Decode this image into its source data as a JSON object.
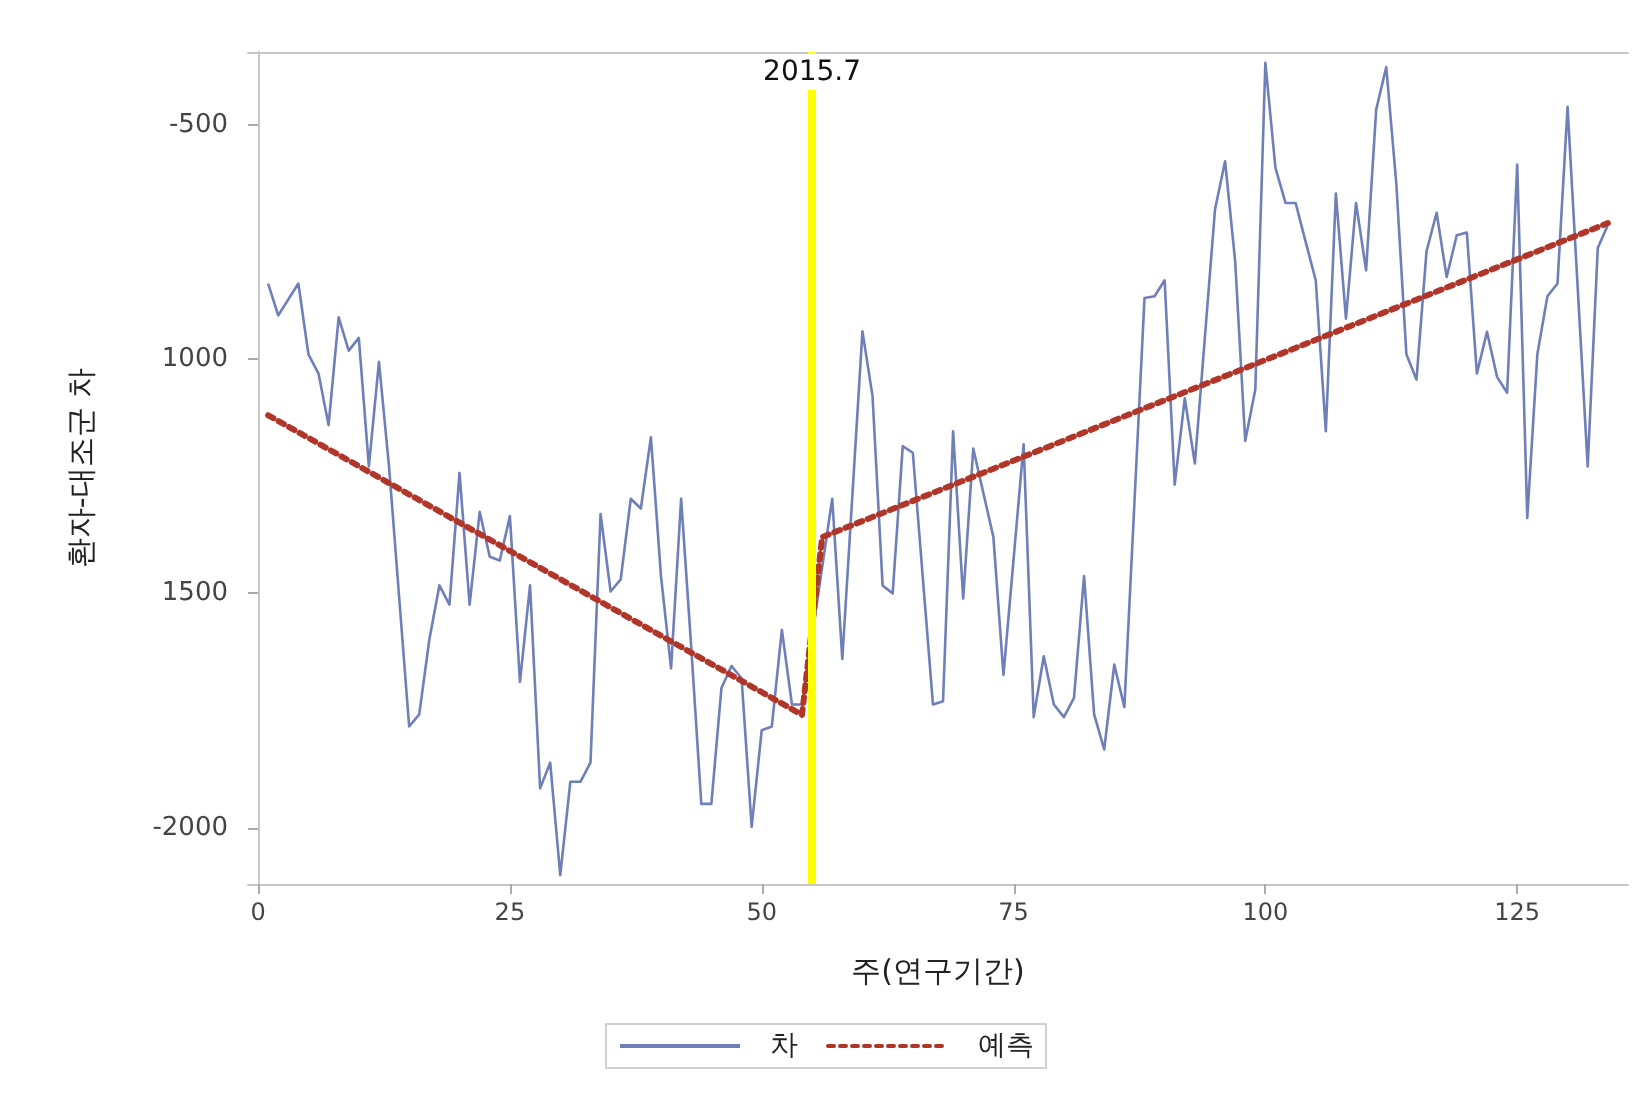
{
  "chart_data": {
    "type": "line",
    "xlabel": "주(연구기간)",
    "ylabel": "환자-대조군 차",
    "xlim": [
      -1,
      136
    ],
    "xticks": [
      0,
      25,
      50,
      75,
      100,
      125
    ],
    "ylim": [
      -2120,
      -345
    ],
    "yticks": [
      -500,
      {
        "value": -1000,
        "label": "1000"
      },
      {
        "value": -1500,
        "label": "1500"
      },
      -2000
    ],
    "series": [
      {
        "name": "차",
        "color": "#6f7fb8",
        "line_style": "solid",
        "x": [
          1,
          2,
          4,
          5,
          6,
          7,
          8,
          9,
          10,
          11,
          12,
          13,
          15,
          16,
          17,
          18,
          19,
          20,
          21,
          22,
          23,
          24,
          25,
          26,
          27,
          28,
          29,
          30,
          31,
          32,
          33,
          34,
          35,
          36,
          37,
          38,
          39,
          40,
          41,
          42,
          43,
          44,
          45,
          46,
          47,
          48,
          49,
          50,
          51,
          52,
          53,
          54,
          57,
          58,
          60,
          61,
          62,
          63,
          64,
          65,
          67,
          68,
          69,
          70,
          71,
          73,
          74,
          76,
          77,
          78,
          79,
          80,
          81,
          82,
          83,
          84,
          85,
          86,
          88,
          89,
          90,
          91,
          92,
          93,
          95,
          96,
          97,
          98,
          99,
          100,
          101,
          102,
          103,
          104,
          105,
          106,
          107,
          108,
          109,
          110,
          111,
          112,
          113,
          114,
          115,
          116,
          117,
          118,
          119,
          120,
          121,
          122,
          123,
          124,
          125,
          126,
          127,
          128,
          129,
          130,
          132,
          133,
          134
        ],
        "values": [
          -839,
          -907,
          -839,
          -990,
          -1031,
          -1141,
          -911,
          -982,
          -955,
          -1229,
          -1006,
          -1229,
          -1784,
          -1758,
          -1599,
          -1483,
          -1524,
          -1243,
          -1524,
          -1326,
          -1422,
          -1430,
          -1335,
          -1689,
          -1483,
          -1916,
          -1861,
          -2101,
          -1902,
          -1902,
          -1861,
          -1331,
          -1496,
          -1470,
          -1298,
          -1319,
          -1167,
          -1463,
          -1660,
          -1298,
          -1614,
          -1949,
          -1949,
          -1702,
          -1655,
          -1681,
          -1998,
          -1792,
          -1784,
          -1578,
          -1737,
          -1737,
          -1298,
          -1640,
          -941,
          -1079,
          -1483,
          -1500,
          -1186,
          -1200,
          -1737,
          -1730,
          -1154,
          -1511,
          -1191,
          -1380,
          -1674,
          -1182,
          -1764,
          -1634,
          -1737,
          -1764,
          -1723,
          -1463,
          -1758,
          -1833,
          -1652,
          -1743,
          -870,
          -866,
          -832,
          -1268,
          -1084,
          -1223,
          -681,
          -578,
          -791,
          -1175,
          -1065,
          -368,
          -592,
          -667,
          -667,
          -750,
          -832,
          -1154,
          -647,
          -914,
          -667,
          -811,
          -468,
          -377,
          -626,
          -990,
          -1044,
          -770,
          -688,
          -825,
          -736,
          -730,
          -1031,
          -942,
          -1038,
          -1072,
          -585,
          -1339,
          -990,
          -866,
          -839,
          -462,
          -1229,
          -763,
          -714
        ]
      },
      {
        "name": "예측",
        "color": "#b0362a",
        "line_style": "dotted",
        "x": [
          1,
          54,
          56,
          134
        ],
        "values": [
          -1120,
          -1759,
          -1380,
          -710
        ]
      }
    ],
    "ref_lines": [
      {
        "axis": "x",
        "value": 55,
        "color": "#ffff00"
      }
    ],
    "annotations": [
      "2015.7"
    ],
    "grid": false,
    "legend": "bottom",
    "marker": "none"
  }
}
